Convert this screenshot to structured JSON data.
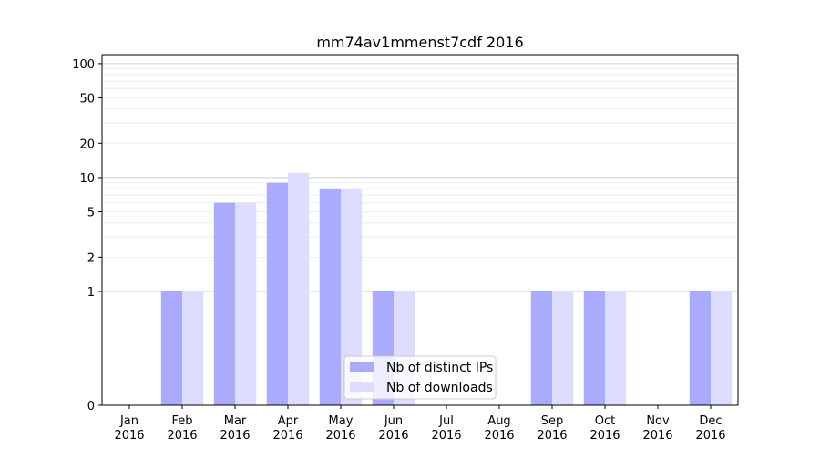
{
  "chart_data": {
    "type": "bar",
    "title": "mm74av1mmenst7cdf 2016",
    "xlabel": "",
    "ylabel": "",
    "categories": [
      [
        "Jan",
        "2016"
      ],
      [
        "Feb",
        "2016"
      ],
      [
        "Mar",
        "2016"
      ],
      [
        "Apr",
        "2016"
      ],
      [
        "May",
        "2016"
      ],
      [
        "Jun",
        "2016"
      ],
      [
        "Jul",
        "2016"
      ],
      [
        "Aug",
        "2016"
      ],
      [
        "Sep",
        "2016"
      ],
      [
        "Oct",
        "2016"
      ],
      [
        "Nov",
        "2016"
      ],
      [
        "Dec",
        "2016"
      ]
    ],
    "series": [
      {
        "name": "Nb of distinct IPs",
        "color": "#aaaaff",
        "values": [
          0,
          1,
          6,
          9,
          8,
          1,
          0,
          0,
          1,
          1,
          0,
          1
        ]
      },
      {
        "name": "Nb of downloads",
        "color": "#ddddff",
        "values": [
          0,
          1,
          6,
          11,
          8,
          1,
          0,
          0,
          1,
          1,
          0,
          1
        ]
      }
    ],
    "y_scale": "symlog",
    "y_ticks": [
      0,
      1,
      2,
      5,
      10,
      20,
      50,
      100
    ],
    "y_tick_labels": [
      "0",
      "1",
      "2",
      "5",
      "10",
      "20",
      "50",
      "100"
    ],
    "ylim": [
      0,
      120
    ],
    "grid": true,
    "legend_position": "bottom-center"
  }
}
